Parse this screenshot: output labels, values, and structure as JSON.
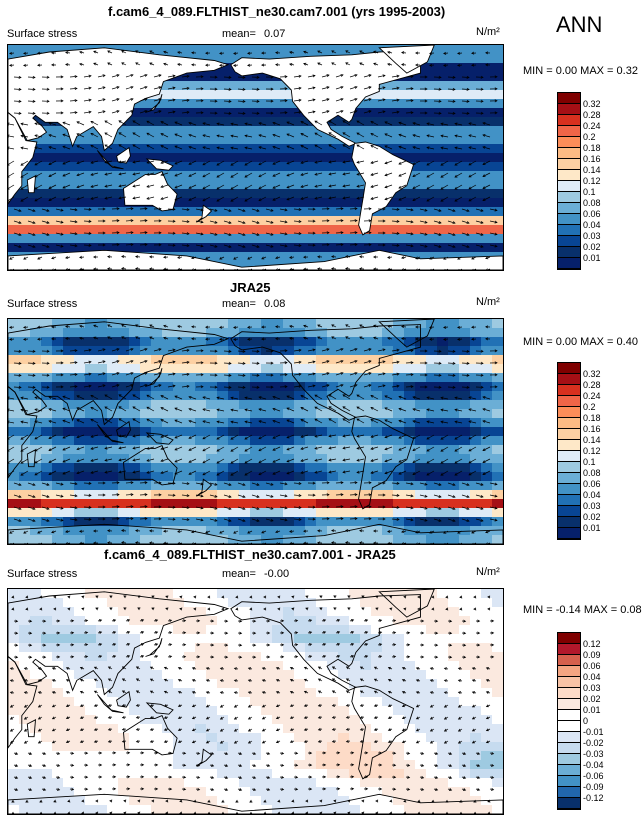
{
  "season": "ANN",
  "panels": [
    {
      "title": "f.cam6_4_089.FLTHIST_ne30.cam7.001 (yrs 1995-2003)",
      "variable": "Surface stress",
      "mean_label": "mean=",
      "mean_value": "0.07",
      "units": "N/m²",
      "minmax": "MIN =  0.00 MAX =  0.32",
      "scale": "sequential",
      "colorbar_labels": [
        "0.32",
        "0.28",
        "0.24",
        "0.2",
        "0.18",
        "0.16",
        "0.14",
        "0.12",
        "0.1",
        "0.08",
        "0.06",
        "0.04",
        "0.03",
        "0.02",
        "0.01"
      ]
    },
    {
      "title": "JRA25",
      "variable": "Surface stress",
      "mean_label": "mean=",
      "mean_value": "0.08",
      "units": "N/m²",
      "minmax": "MIN =  0.00 MAX =  0.40",
      "scale": "sequential",
      "colorbar_labels": [
        "0.32",
        "0.28",
        "0.24",
        "0.2",
        "0.18",
        "0.16",
        "0.14",
        "0.12",
        "0.1",
        "0.08",
        "0.06",
        "0.04",
        "0.03",
        "0.02",
        "0.01"
      ]
    },
    {
      "title": "f.cam6_4_089.FLTHIST_ne30.cam7.001 - JRA25",
      "variable": "Surface stress",
      "mean_label": "mean=",
      "mean_value": "-0.00",
      "units": "N/m²",
      "minmax": "MIN = -0.14 MAX =  0.08",
      "scale": "diverging",
      "colorbar_labels": [
        "0.12",
        "0.09",
        "0.06",
        "0.04",
        "0.03",
        "0.02",
        "0.01",
        "0",
        "-0.01",
        "-0.02",
        "-0.03",
        "-0.04",
        "-0.06",
        "-0.09",
        "-0.12"
      ]
    }
  ],
  "colors": {
    "sequential": [
      "#7f0000",
      "#a50f15",
      "#d7301f",
      "#ef6548",
      "#fc8d59",
      "#fdbb84",
      "#fdd0a2",
      "#fee8c8",
      "#deebf7",
      "#9ecae1",
      "#6baed6",
      "#4292c6",
      "#2171b5",
      "#084594",
      "#08306b",
      "#06206a"
    ],
    "diverging": [
      "#7f0000",
      "#b2182b",
      "#d6604d",
      "#f4a582",
      "#f8c3a6",
      "#fddbc7",
      "#fbe9df",
      "#ffffff",
      "#ffffff",
      "#dbe6f5",
      "#c6dbef",
      "#9ecae1",
      "#6baed6",
      "#4292c6",
      "#2166ac",
      "#08306b"
    ],
    "land": "#ffffff",
    "coast": "#000000"
  }
}
